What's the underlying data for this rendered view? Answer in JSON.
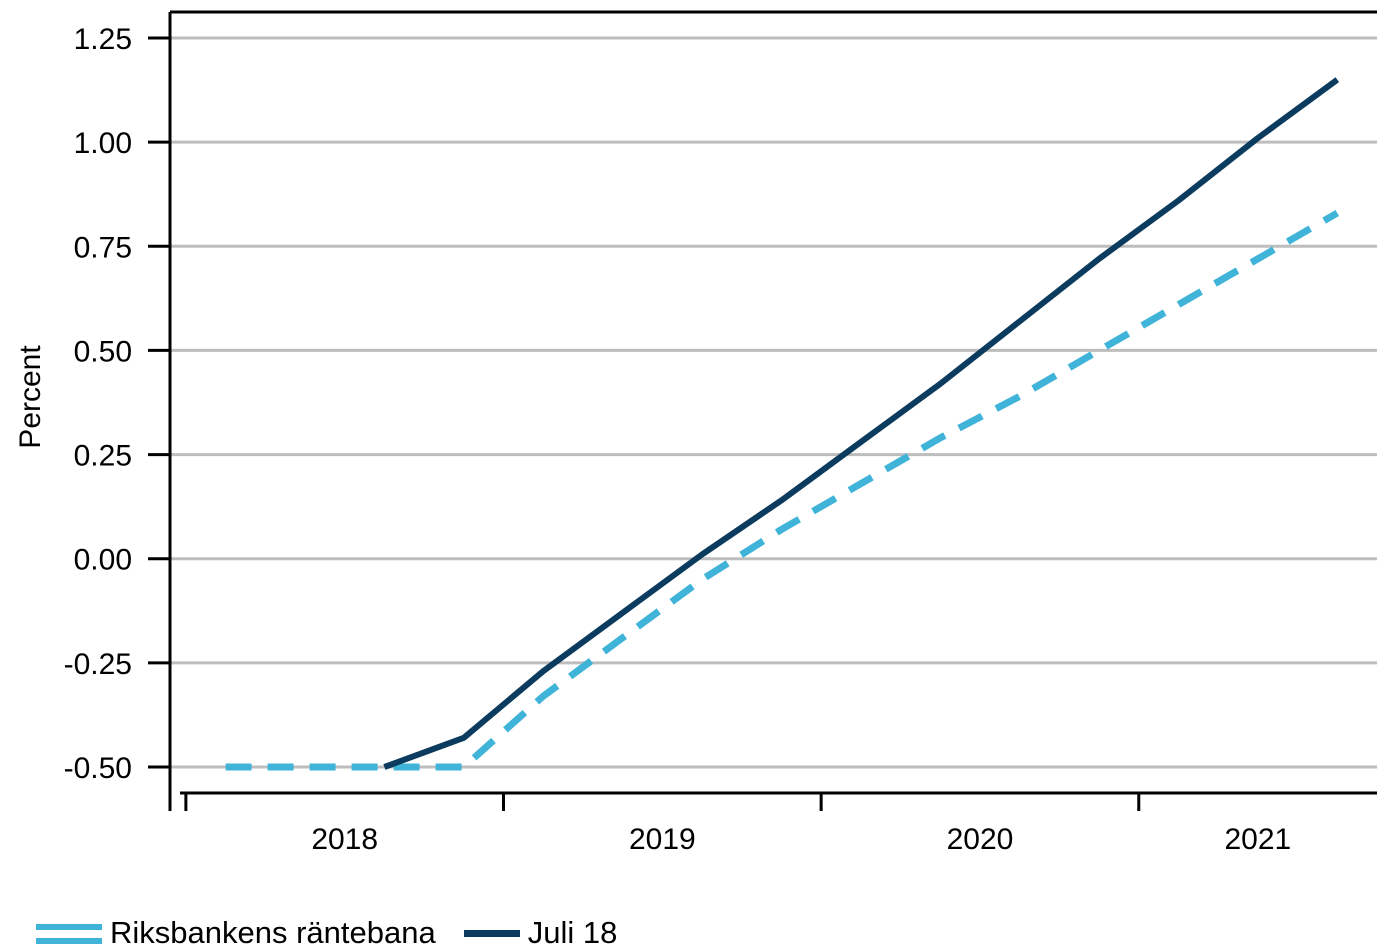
{
  "chart_data": {
    "type": "line",
    "title": "",
    "xlabel": "",
    "ylabel": "Percent",
    "ylim": [
      -0.5625,
      1.3125
    ],
    "xlim": [
      2017.7,
      2021.5
    ],
    "yticks": [
      -0.5,
      -0.25,
      0.0,
      0.25,
      0.5,
      0.75,
      1.0,
      1.25
    ],
    "ytick_labels": [
      "-0.50",
      "-0.25",
      "0.00",
      "0.25",
      "0.50",
      "0.75",
      "1.00",
      "1.25"
    ],
    "xticks": [
      2017.75,
      2018.75,
      2019.75,
      2020.75
    ],
    "xcategory_labels": [
      "2018",
      "2019",
      "2020",
      "2021"
    ],
    "xcategory_positions": [
      2018.25,
      2019.25,
      2020.25,
      2021.125
    ],
    "grid": "horizontal",
    "legend_position": "bottom-left",
    "series": [
      {
        "name": "Riksbankens räntebana",
        "color": "#3fb3d8",
        "style": "dashed",
        "x": [
          2017.875,
          2018.125,
          2018.375,
          2018.625,
          2018.875,
          2019.125,
          2019.375,
          2019.625,
          2019.875,
          2020.125,
          2020.375,
          2020.625,
          2020.875,
          2021.125,
          2021.375
        ],
        "y": [
          -0.5,
          -0.5,
          -0.5,
          -0.5,
          -0.33,
          -0.19,
          -0.05,
          0.07,
          0.18,
          0.29,
          0.39,
          0.5,
          0.61,
          0.72,
          0.83
        ]
      },
      {
        "name": "Juli 18",
        "color": "#0b3b5e",
        "style": "solid",
        "x": [
          2018.375,
          2018.625,
          2018.875,
          2019.125,
          2019.375,
          2019.625,
          2019.875,
          2020.125,
          2020.375,
          2020.625,
          2020.875,
          2021.125,
          2021.375
        ],
        "y": [
          -0.5,
          -0.43,
          -0.27,
          -0.13,
          0.01,
          0.14,
          0.28,
          0.42,
          0.57,
          0.72,
          0.86,
          1.01,
          1.15
        ]
      }
    ]
  }
}
